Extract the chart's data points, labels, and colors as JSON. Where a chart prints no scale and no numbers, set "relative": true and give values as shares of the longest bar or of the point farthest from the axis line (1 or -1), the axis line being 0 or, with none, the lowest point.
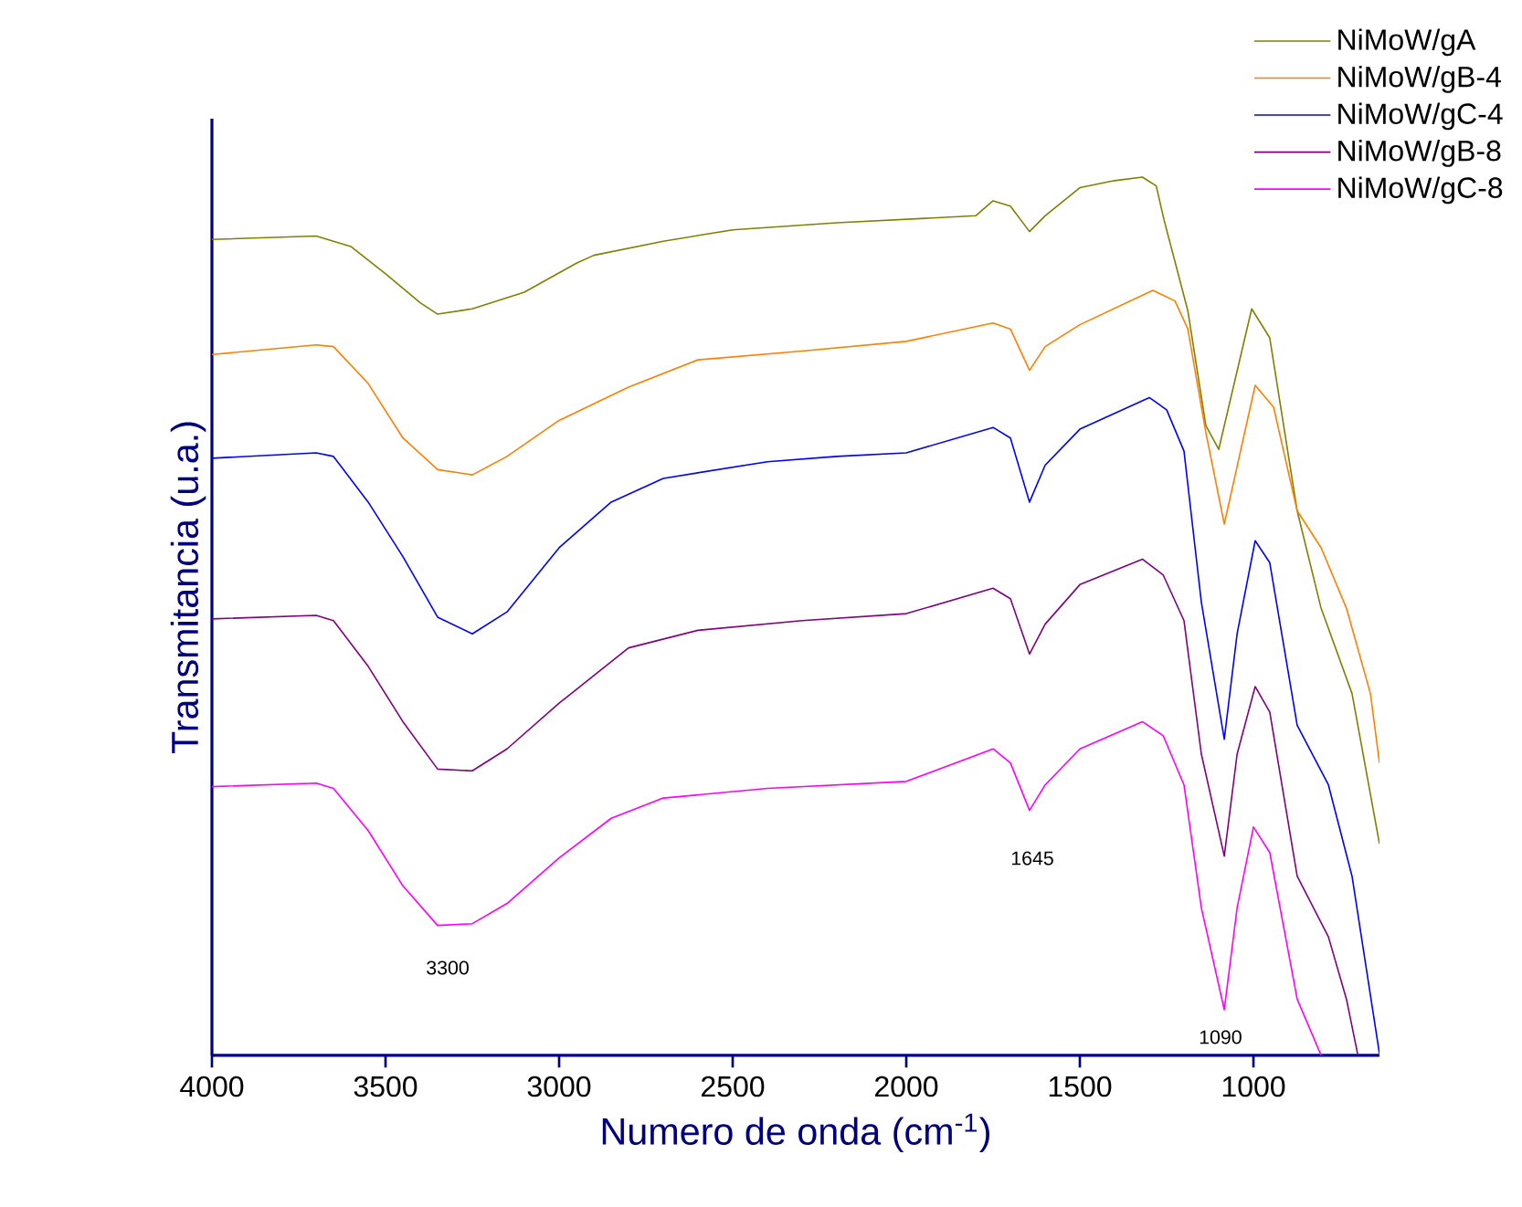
{
  "chart_data": {
    "type": "line",
    "relative": true,
    "xlabel": "Numero de onda (cm$^{-1}$)",
    "ylabel": "Transmitancia (u.a.)",
    "xlim": [
      4000,
      637
    ],
    "xticks": [
      4000,
      3500,
      3000,
      2500,
      2000,
      1500,
      1000
    ],
    "legend": "top right",
    "marker": "none",
    "line_style": "solid",
    "grid": false,
    "series": [
      {
        "name": "NiMoW/gA",
        "color": "#808000",
        "x": [
          4000,
          3700,
          3600,
          3500,
          3400,
          3350,
          3250,
          3100,
          2950,
          2900,
          2700,
          2500,
          2200,
          2000,
          1800,
          1750,
          1700,
          1645,
          1600,
          1500,
          1400,
          1320,
          1280,
          1258,
          1189,
          1137,
          1100,
          1005,
          953,
          874,
          805,
          716,
          637
        ],
        "values": [
          0.929,
          0.933,
          0.921,
          0.89,
          0.857,
          0.844,
          0.85,
          0.869,
          0.902,
          0.911,
          0.927,
          0.94,
          0.948,
          0.952,
          0.956,
          0.973,
          0.967,
          0.938,
          0.956,
          0.988,
          0.996,
          1.0,
          0.99,
          0.952,
          0.848,
          0.717,
          0.69,
          0.85,
          0.817,
          0.62,
          0.509,
          0.412,
          0.241
        ]
      },
      {
        "name": "NiMoW/gB-4",
        "color": "#ff8000",
        "x": [
          4000,
          3700,
          3650,
          3550,
          3450,
          3350,
          3250,
          3150,
          3000,
          2800,
          2600,
          2300,
          2000,
          1750,
          1700,
          1645,
          1600,
          1500,
          1290,
          1226,
          1189,
          1137,
          1084,
          995,
          942,
          874,
          805,
          732,
          663,
          637
        ],
        "values": [
          0.798,
          0.809,
          0.807,
          0.765,
          0.703,
          0.667,
          0.661,
          0.682,
          0.723,
          0.761,
          0.792,
          0.802,
          0.813,
          0.834,
          0.827,
          0.78,
          0.807,
          0.832,
          0.871,
          0.859,
          0.827,
          0.709,
          0.605,
          0.763,
          0.738,
          0.62,
          0.578,
          0.509,
          0.412,
          0.333
        ]
      },
      {
        "name": "NiMoW/gC-4",
        "color": "#0000ff",
        "x": [
          4000,
          3700,
          3650,
          3550,
          3450,
          3350,
          3250,
          3150,
          3000,
          2850,
          2700,
          2400,
          2200,
          2000,
          1750,
          1700,
          1645,
          1600,
          1500,
          1300,
          1250,
          1200,
          1150,
          1084,
          1047,
          995,
          953,
          874,
          784,
          716,
          637
        ],
        "values": [
          0.68,
          0.686,
          0.682,
          0.63,
          0.568,
          0.499,
          0.48,
          0.505,
          0.578,
          0.63,
          0.657,
          0.676,
          0.682,
          0.686,
          0.715,
          0.703,
          0.63,
          0.672,
          0.713,
          0.749,
          0.735,
          0.688,
          0.516,
          0.36,
          0.48,
          0.586,
          0.561,
          0.376,
          0.308,
          0.204,
          0.002
        ]
      },
      {
        "name": "NiMoW/gB-8",
        "color": "#800080",
        "x": [
          4000,
          3700,
          3650,
          3550,
          3450,
          3350,
          3250,
          3150,
          3000,
          2800,
          2600,
          2300,
          2000,
          1750,
          1700,
          1645,
          1600,
          1500,
          1320,
          1260,
          1200,
          1150,
          1084,
          1047,
          995,
          953,
          874,
          784,
          732,
          700
        ],
        "values": [
          0.497,
          0.501,
          0.495,
          0.443,
          0.38,
          0.326,
          0.324,
          0.349,
          0.401,
          0.464,
          0.484,
          0.495,
          0.503,
          0.532,
          0.52,
          0.457,
          0.491,
          0.536,
          0.565,
          0.547,
          0.495,
          0.343,
          0.227,
          0.343,
          0.42,
          0.391,
          0.204,
          0.135,
          0.064,
          0.002
        ]
      },
      {
        "name": "NiMoW/gC-8",
        "color": "#ff00ff",
        "x": [
          4000,
          3700,
          3650,
          3550,
          3450,
          3350,
          3250,
          3150,
          3000,
          2850,
          2700,
          2400,
          2000,
          1750,
          1700,
          1645,
          1600,
          1500,
          1320,
          1260,
          1200,
          1150,
          1084,
          1047,
          1000,
          953,
          874,
          805
        ],
        "values": [
          0.306,
          0.31,
          0.304,
          0.256,
          0.193,
          0.148,
          0.15,
          0.173,
          0.225,
          0.27,
          0.293,
          0.304,
          0.312,
          0.349,
          0.333,
          0.279,
          0.308,
          0.349,
          0.38,
          0.364,
          0.308,
          0.168,
          0.052,
          0.168,
          0.26,
          0.231,
          0.064,
          0
        ]
      }
    ],
    "annotations": [
      "3300",
      "1645",
      "1090"
    ]
  }
}
